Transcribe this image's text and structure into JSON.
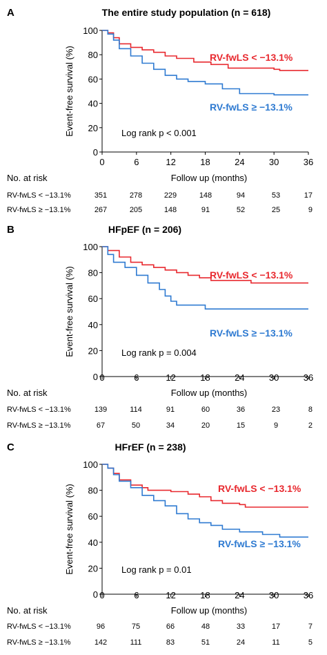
{
  "figure": {
    "panels": [
      {
        "letter": "A",
        "title": "The entire study population (n = 618)",
        "log_rank": "Log rank p < 0.001",
        "risk_header": "No. at risk",
        "risk_rows": [
          {
            "label": "RV-fwLS < −13.1%",
            "values": [
              "351",
              "278",
              "229",
              "148",
              "94",
              "53",
              "17"
            ]
          },
          {
            "label": "RV-fwLS ≥ −13.1%",
            "values": [
              "267",
              "205",
              "148",
              "91",
              "52",
              "25",
              "9"
            ]
          }
        ]
      },
      {
        "letter": "B",
        "title": "HFpEF (n = 206)",
        "log_rank": "Log rank p = 0.004",
        "risk_header": "No. at risk",
        "risk_rows": [
          {
            "label": "RV-fwLS < −13.1%",
            "values": [
              "139",
              "114",
              "91",
              "60",
              "36",
              "23",
              "8"
            ]
          },
          {
            "label": "RV-fwLS ≥ −13.1%",
            "values": [
              "67",
              "50",
              "34",
              "20",
              "15",
              "9",
              "2"
            ]
          }
        ]
      },
      {
        "letter": "C",
        "title": "HFrEF (n = 238)",
        "log_rank": "Log rank p = 0.01",
        "risk_header": "No. at risk",
        "risk_rows": [
          {
            "label": "RV-fwLS < −13.1%",
            "values": [
              "96",
              "75",
              "66",
              "48",
              "33",
              "17",
              "7"
            ]
          },
          {
            "label": "RV-fwLS ≥ −13.1%",
            "values": [
              "142",
              "111",
              "83",
              "51",
              "24",
              "11",
              "5"
            ]
          }
        ]
      }
    ]
  },
  "chart_data": [
    {
      "type": "line",
      "title": "The entire study population (n = 618)",
      "xlabel": "Follow up (months)",
      "ylabel": "Event-free survival (%)",
      "xlim": [
        0,
        36
      ],
      "ylim": [
        0,
        100
      ],
      "xticks": [
        "0",
        "6",
        "12",
        "18",
        "24",
        "30",
        "36"
      ],
      "yticks": [
        "0",
        "20",
        "40",
        "60",
        "80",
        "100"
      ],
      "series": [
        {
          "name": "RV-fwLS < −13.1%",
          "color": "#e8282e",
          "points": [
            [
              0,
              100
            ],
            [
              1,
              98
            ],
            [
              2,
              94
            ],
            [
              3,
              89
            ],
            [
              5,
              86
            ],
            [
              7,
              84
            ],
            [
              9,
              82
            ],
            [
              11,
              79
            ],
            [
              13,
              77
            ],
            [
              16,
              74
            ],
            [
              19,
              72
            ],
            [
              22,
              69
            ],
            [
              25,
              69
            ],
            [
              30,
              68
            ],
            [
              31,
              67
            ],
            [
              36,
              67
            ]
          ]
        },
        {
          "name": "RV-fwLS ≥ −13.1%",
          "color": "#2e7ad1",
          "points": [
            [
              0,
              100
            ],
            [
              1,
              97
            ],
            [
              2,
              92
            ],
            [
              3,
              85
            ],
            [
              5,
              79
            ],
            [
              7,
              73
            ],
            [
              9,
              68
            ],
            [
              11,
              63
            ],
            [
              13,
              60
            ],
            [
              15,
              58
            ],
            [
              18,
              56
            ],
            [
              21,
              52
            ],
            [
              24,
              48
            ],
            [
              30,
              47
            ],
            [
              36,
              47
            ]
          ]
        }
      ]
    },
    {
      "type": "line",
      "title": "HFpEF (n = 206)",
      "xlabel": "Follow up (months)",
      "ylabel": "Event-free survival (%)",
      "xlim": [
        0,
        36
      ],
      "ylim": [
        0,
        100
      ],
      "xticks": [
        "0",
        "6",
        "12",
        "18",
        "24",
        "30",
        "36"
      ],
      "yticks": [
        "0",
        "20",
        "40",
        "60",
        "80",
        "100"
      ],
      "series": [
        {
          "name": "RV-fwLS < −13.1%",
          "color": "#e8282e",
          "points": [
            [
              0,
              100
            ],
            [
              1,
              97
            ],
            [
              3,
              92
            ],
            [
              5,
              88
            ],
            [
              7,
              86
            ],
            [
              9,
              84
            ],
            [
              11,
              82
            ],
            [
              13,
              80
            ],
            [
              15,
              78
            ],
            [
              17,
              76
            ],
            [
              19,
              74
            ],
            [
              24,
              74
            ],
            [
              26,
              72
            ],
            [
              36,
              72
            ]
          ]
        },
        {
          "name": "RV-fwLS ≥ −13.1%",
          "color": "#2e7ad1",
          "points": [
            [
              0,
              100
            ],
            [
              1,
              94
            ],
            [
              2,
              88
            ],
            [
              4,
              84
            ],
            [
              6,
              78
            ],
            [
              8,
              72
            ],
            [
              10,
              67
            ],
            [
              11,
              62
            ],
            [
              12,
              58
            ],
            [
              13,
              55
            ],
            [
              15,
              55
            ],
            [
              18,
              52
            ],
            [
              36,
              52
            ]
          ]
        }
      ]
    },
    {
      "type": "line",
      "title": "HFrEF (n = 238)",
      "xlabel": "Follow up (months)",
      "ylabel": "Event-free survival (%)",
      "xlim": [
        0,
        36
      ],
      "ylim": [
        0,
        100
      ],
      "xticks": [
        "0",
        "6",
        "12",
        "18",
        "24",
        "30",
        "36"
      ],
      "yticks": [
        "0",
        "20",
        "40",
        "60",
        "80",
        "100"
      ],
      "series": [
        {
          "name": "RV-fwLS < −13.1%",
          "color": "#e8282e",
          "points": [
            [
              0,
              100
            ],
            [
              1,
              97
            ],
            [
              2,
              93
            ],
            [
              3,
              88
            ],
            [
              5,
              84
            ],
            [
              7,
              82
            ],
            [
              8,
              80
            ],
            [
              12,
              79
            ],
            [
              15,
              77
            ],
            [
              17,
              75
            ],
            [
              19,
              72
            ],
            [
              21,
              70
            ],
            [
              24,
              69
            ],
            [
              25,
              67
            ],
            [
              36,
              67
            ]
          ]
        },
        {
          "name": "RV-fwLS ≥ −13.1%",
          "color": "#2e7ad1",
          "points": [
            [
              0,
              100
            ],
            [
              1,
              97
            ],
            [
              2,
              92
            ],
            [
              3,
              87
            ],
            [
              5,
              82
            ],
            [
              7,
              76
            ],
            [
              9,
              72
            ],
            [
              11,
              68
            ],
            [
              13,
              62
            ],
            [
              15,
              58
            ],
            [
              17,
              55
            ],
            [
              19,
              53
            ],
            [
              21,
              50
            ],
            [
              24,
              48
            ],
            [
              28,
              46
            ],
            [
              31,
              44
            ],
            [
              36,
              44
            ]
          ]
        }
      ]
    }
  ]
}
